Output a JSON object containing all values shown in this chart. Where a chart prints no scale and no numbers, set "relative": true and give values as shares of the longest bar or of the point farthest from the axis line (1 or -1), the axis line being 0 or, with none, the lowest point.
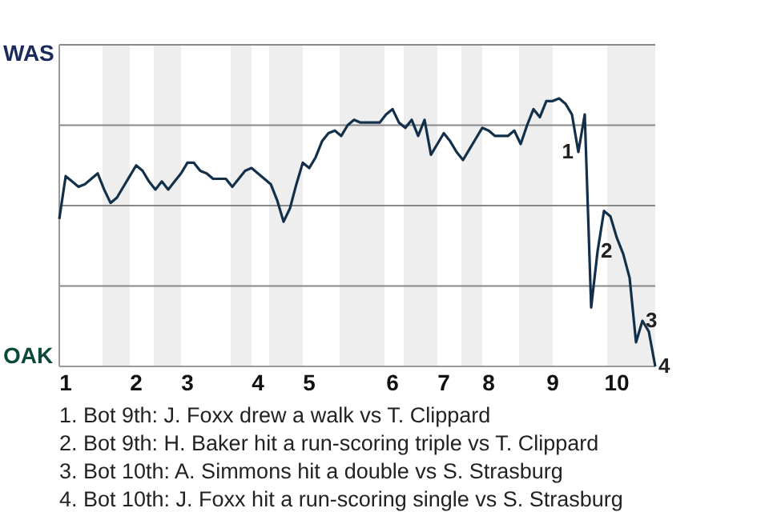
{
  "chart_data": {
    "type": "line",
    "relative": true,
    "categories": [
      null,
      "1",
      null,
      null,
      null,
      null,
      null,
      null,
      null,
      null,
      null,
      null,
      "2",
      null,
      null,
      null,
      null,
      null,
      null,
      null,
      "3",
      null,
      null,
      null,
      null,
      null,
      null,
      null,
      null,
      null,
      null,
      "4",
      null,
      null,
      null,
      null,
      null,
      null,
      null,
      "5",
      null,
      null,
      null,
      null,
      null,
      null,
      null,
      null,
      null,
      null,
      null,
      null,
      "6",
      null,
      null,
      null,
      null,
      null,
      null,
      null,
      "7",
      null,
      null,
      null,
      null,
      null,
      null,
      "8",
      null,
      null,
      null,
      null,
      null,
      null,
      null,
      null,
      null,
      "9",
      null,
      null,
      null,
      null,
      null,
      null,
      null,
      null,
      null,
      "10",
      null,
      null,
      null,
      null,
      null,
      null
    ],
    "marker": "none",
    "line_style": "solid",
    "series": [
      {
        "color": "#13304a",
        "values": [
          0.55,
          0.71,
          0.69,
          0.67,
          0.68,
          0.7,
          0.72,
          0.66,
          0.61,
          0.63,
          0.67,
          0.71,
          0.75,
          0.73,
          0.69,
          0.66,
          0.69,
          0.66,
          0.69,
          0.72,
          0.76,
          0.76,
          0.73,
          0.72,
          0.7,
          0.7,
          0.7,
          0.67,
          0.7,
          0.73,
          0.74,
          0.72,
          0.7,
          0.68,
          0.62,
          0.54,
          0.59,
          0.68,
          0.76,
          0.74,
          0.78,
          0.84,
          0.87,
          0.88,
          0.86,
          0.9,
          0.92,
          0.91,
          0.91,
          0.91,
          0.91,
          0.94,
          0.96,
          0.91,
          0.89,
          0.92,
          0.86,
          0.92,
          0.79,
          0.83,
          0.87,
          0.84,
          0.8,
          0.77,
          0.81,
          0.85,
          0.89,
          0.88,
          0.86,
          0.86,
          0.86,
          0.88,
          0.83,
          0.9,
          0.96,
          0.93,
          0.99,
          0.99,
          1,
          0.98,
          0.94,
          0.8,
          0.94,
          0.22,
          0.43,
          0.58,
          0.56,
          0.48,
          0.42,
          0.33,
          0.09,
          0.17,
          0.13,
          0
        ]
      }
    ],
    "annotations": [
      "WAS",
      "OAK",
      "1",
      "2",
      "3",
      "4",
      "1. Bot 9th: J. Foxx drew a walk vs T. Clippard",
      "2. Bot 9th: H. Baker hit a run-scoring triple vs T. Clippard",
      "3. Bot 10th: A. Simmons hit a double vs S. Strasburg",
      "4. Bot 10th: J. Foxx hit a run-scoring single vs S. Strasburg"
    ]
  }
}
